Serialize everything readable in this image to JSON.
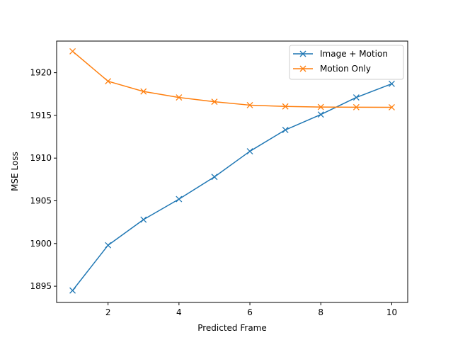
{
  "chart_data": {
    "type": "line",
    "title": "",
    "xlabel": "Predicted Frame",
    "ylabel": "MSE Loss",
    "xlim": [
      0.55,
      10.45
    ],
    "ylim": [
      1893.1,
      1923.7
    ],
    "xticks": [
      2,
      4,
      6,
      8,
      10
    ],
    "yticks": [
      1895,
      1900,
      1905,
      1910,
      1915,
      1920
    ],
    "grid": false,
    "legend_position": "top-right",
    "marker": "x",
    "x": [
      1,
      2,
      3,
      4,
      5,
      6,
      7,
      8,
      9,
      10
    ],
    "series": [
      {
        "name": "Image + Motion",
        "color": "#1f77b4",
        "values": [
          1894.5,
          1899.8,
          1902.8,
          1905.2,
          1907.8,
          1910.8,
          1913.3,
          1915.1,
          1917.1,
          1918.7
        ]
      },
      {
        "name": "Motion Only",
        "color": "#ff7f0e",
        "values": [
          1922.5,
          1919.0,
          1917.8,
          1917.1,
          1916.6,
          1916.2,
          1916.05,
          1915.98,
          1915.96,
          1915.95
        ]
      }
    ]
  }
}
